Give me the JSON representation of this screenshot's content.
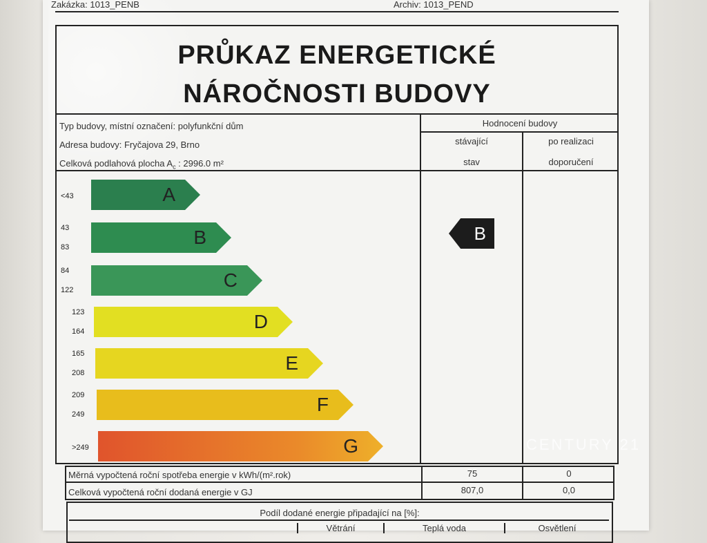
{
  "header": {
    "zakazka": "Zakázka: 1013_PENB",
    "archiv": "Archiv: 1013_PEND"
  },
  "title": {
    "line1": "PRŮKAZ ENERGETICKÉ",
    "line2": "NÁROČNOSTI BUDOVY"
  },
  "info": {
    "type": "Typ budovy, místní označení: polyfunkční dům",
    "address": "Adresa budovy: Fryčajova 29, Brno",
    "area_label": "Celková podlahová plocha A",
    "area_sub": "c",
    "area_value": " : 2996.0 m²"
  },
  "rating_header": {
    "title": "Hodnocení budovy",
    "col1_l1": "stávající",
    "col1_l2": "stav",
    "col2_l1": "po realizaci",
    "col2_l2": "doporučení"
  },
  "classes": [
    {
      "letter": "A",
      "range1": "<43",
      "range2": "",
      "color": "#2b7f4e"
    },
    {
      "letter": "B",
      "range1": "43",
      "range2": "83",
      "color": "#2e8c50"
    },
    {
      "letter": "C",
      "range1": "84",
      "range2": "122",
      "color": "#3a9658"
    },
    {
      "letter": "D",
      "range1": "123",
      "range2": "164",
      "color": "#e2df22"
    },
    {
      "letter": "E",
      "range1": "165",
      "range2": "208",
      "color": "#e6d620"
    },
    {
      "letter": "F",
      "range1": "209",
      "range2": "249",
      "color": "#e8bd1c"
    },
    {
      "letter": "G",
      "range1": ">249",
      "range2": "",
      "color": "#e5702a"
    }
  ],
  "current_class": "B",
  "rows": [
    {
      "label": "Měrná vypočtená roční spotřeba energie v kWh/(m².rok)",
      "current": "75",
      "after": "0"
    },
    {
      "label": "Celková vypočtená roční dodaná energie v GJ",
      "current": "807,0",
      "after": "0,0"
    }
  ],
  "share_title": "Podíl dodané energie připadající na [%]:",
  "share_cols": [
    "",
    "",
    "Větrání",
    "Teplá voda",
    "Osvětlení"
  ],
  "watermark": "CENTURY 21"
}
